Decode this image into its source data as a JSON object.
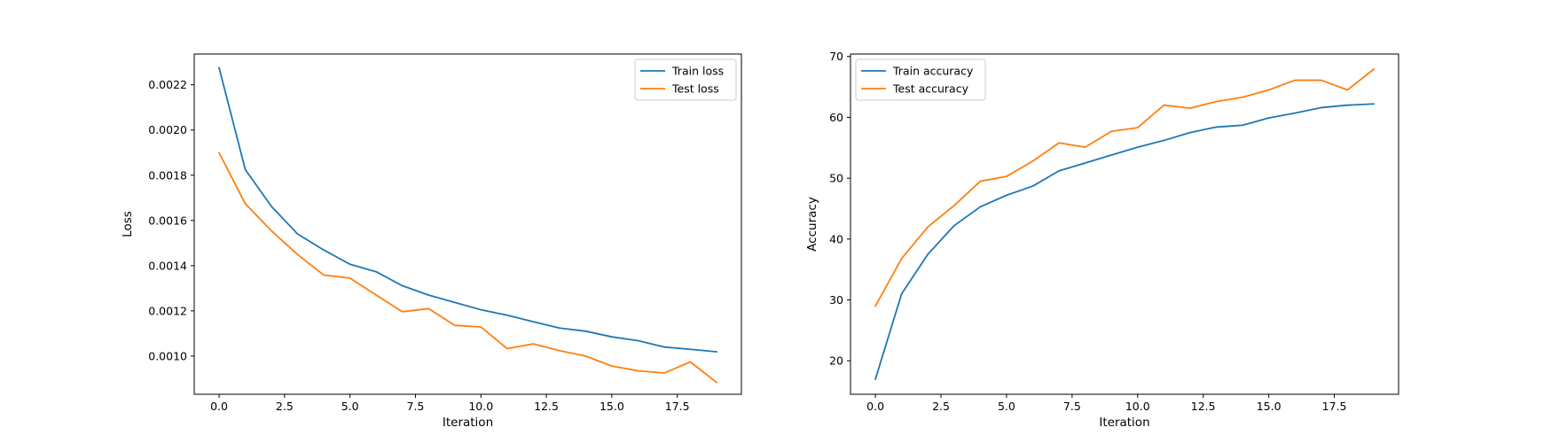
{
  "chart_data": [
    {
      "type": "line",
      "xlabel": "Iteration",
      "ylabel": "Loss",
      "xlim": [
        -0.95,
        19.95
      ],
      "ylim": [
        0.000831,
        0.002336
      ],
      "xticks": [
        0.0,
        2.5,
        5.0,
        7.5,
        10.0,
        12.5,
        15.0,
        17.5
      ],
      "xtick_labels": [
        "0.0",
        "2.5",
        "5.0",
        "7.5",
        "10.0",
        "12.5",
        "15.0",
        "17.5"
      ],
      "yticks": [
        0.001,
        0.0012,
        0.0014,
        0.0016,
        0.0018,
        0.002,
        0.0022
      ],
      "ytick_labels": [
        "0.0010",
        "0.0012",
        "0.0014",
        "0.0016",
        "0.0018",
        "0.0020",
        "0.0022"
      ],
      "legend": "top-right",
      "grid": false,
      "x": [
        0,
        1,
        2,
        3,
        4,
        5,
        6,
        7,
        8,
        9,
        10,
        11,
        12,
        13,
        14,
        15,
        16,
        17,
        18,
        19
      ],
      "series": [
        {
          "name": "Train loss",
          "color": "#1f77b4",
          "values": [
            0.002275,
            0.001825,
            0.001662,
            0.00154,
            0.001469,
            0.001406,
            0.001373,
            0.001311,
            0.00127,
            0.001237,
            0.001205,
            0.001181,
            0.001152,
            0.001124,
            0.00111,
            0.001085,
            0.001068,
            0.00104,
            0.00103,
            0.001019
          ]
        },
        {
          "name": "Test loss",
          "color": "#ff7f0e",
          "values": [
            0.001899,
            0.001674,
            0.001554,
            0.001449,
            0.001358,
            0.001345,
            0.00127,
            0.001196,
            0.00121,
            0.001136,
            0.001129,
            0.001033,
            0.001054,
            0.001024,
            0.001,
            0.000956,
            0.000935,
            0.000925,
            0.000974,
            0.000884
          ]
        }
      ]
    },
    {
      "type": "line",
      "xlabel": "Iteration",
      "ylabel": "Accuracy",
      "xlim": [
        -0.95,
        19.95
      ],
      "ylim": [
        14.5,
        70.4
      ],
      "xticks": [
        0.0,
        2.5,
        5.0,
        7.5,
        10.0,
        12.5,
        15.0,
        17.5
      ],
      "xtick_labels": [
        "0.0",
        "2.5",
        "5.0",
        "7.5",
        "10.0",
        "12.5",
        "15.0",
        "17.5"
      ],
      "yticks": [
        20,
        30,
        40,
        50,
        60,
        70
      ],
      "ytick_labels": [
        "20",
        "30",
        "40",
        "50",
        "60",
        "70"
      ],
      "legend": "top-left",
      "grid": false,
      "x": [
        0,
        1,
        2,
        3,
        4,
        5,
        6,
        7,
        8,
        9,
        10,
        11,
        12,
        13,
        14,
        15,
        16,
        17,
        18,
        19
      ],
      "series": [
        {
          "name": "Train accuracy",
          "color": "#1f77b4",
          "values": [
            17.0,
            31.0,
            37.5,
            42.2,
            45.3,
            47.2,
            48.7,
            51.2,
            52.5,
            53.8,
            55.1,
            56.2,
            57.5,
            58.4,
            58.7,
            59.9,
            60.7,
            61.6,
            62.0,
            62.2
          ]
        },
        {
          "name": "Test accuracy",
          "color": "#ff7f0e",
          "values": [
            29.0,
            36.8,
            42.0,
            45.5,
            49.5,
            50.3,
            52.8,
            55.8,
            55.1,
            57.7,
            58.3,
            62.0,
            61.5,
            62.6,
            63.3,
            64.5,
            66.1,
            66.1,
            64.5,
            67.9
          ]
        }
      ]
    }
  ]
}
